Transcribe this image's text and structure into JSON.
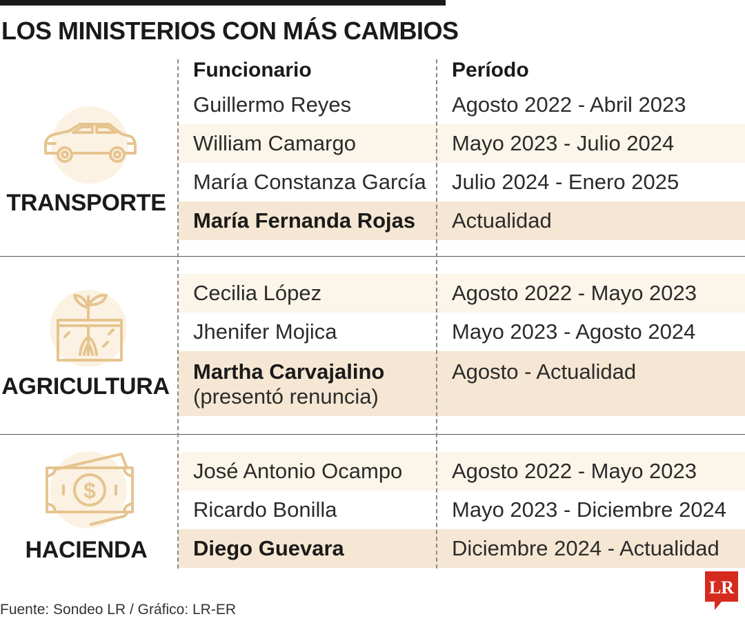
{
  "title": "LOS MINISTERIOS CON MÁS CAMBIOS",
  "headers": {
    "name": "Funcionario",
    "period": "Período"
  },
  "ministries": [
    {
      "label": "TRANSPORTE",
      "icon": "car-icon",
      "rows": [
        {
          "name": "Guillermo Reyes",
          "period": "Agosto 2022 - Abril 2023"
        },
        {
          "name": "William Camargo",
          "period": "Mayo 2023 - Julio 2024"
        },
        {
          "name": "María Constanza García",
          "period": "Julio 2024 - Enero 2025"
        },
        {
          "name": "María Fernanda Rojas",
          "period": "Actualidad"
        }
      ]
    },
    {
      "label": "AGRICULTURA",
      "icon": "sprout-icon",
      "rows": [
        {
          "name": "Cecilia López",
          "period": "Agosto 2022 - Mayo 2023"
        },
        {
          "name": "Jhenifer Mojica",
          "period": "Mayo 2023 - Agosto 2024"
        },
        {
          "name": "Martha Carvajalino",
          "note": "(presentó renuncia)",
          "period": "Agosto - Actualidad"
        }
      ]
    },
    {
      "label": "HACIENDA",
      "icon": "money-icon",
      "rows": [
        {
          "name": "José Antonio Ocampo",
          "period": "Agosto 2022 - Mayo 2023"
        },
        {
          "name": "Ricardo Bonilla",
          "period": "Mayo 2023 - Diciembre 2024"
        },
        {
          "name": "Diego Guevara",
          "period": "Diciembre 2024 - Actualidad"
        }
      ]
    }
  ],
  "footer": "Fuente: Sondeo LR / Gráfico: LR-ER",
  "logo_text": "LR",
  "colors": {
    "accent": "#e6c48f",
    "row_light": "#fbf5ea",
    "row_dark": "#f5e7d3",
    "logo_red": "#d52b1e"
  }
}
